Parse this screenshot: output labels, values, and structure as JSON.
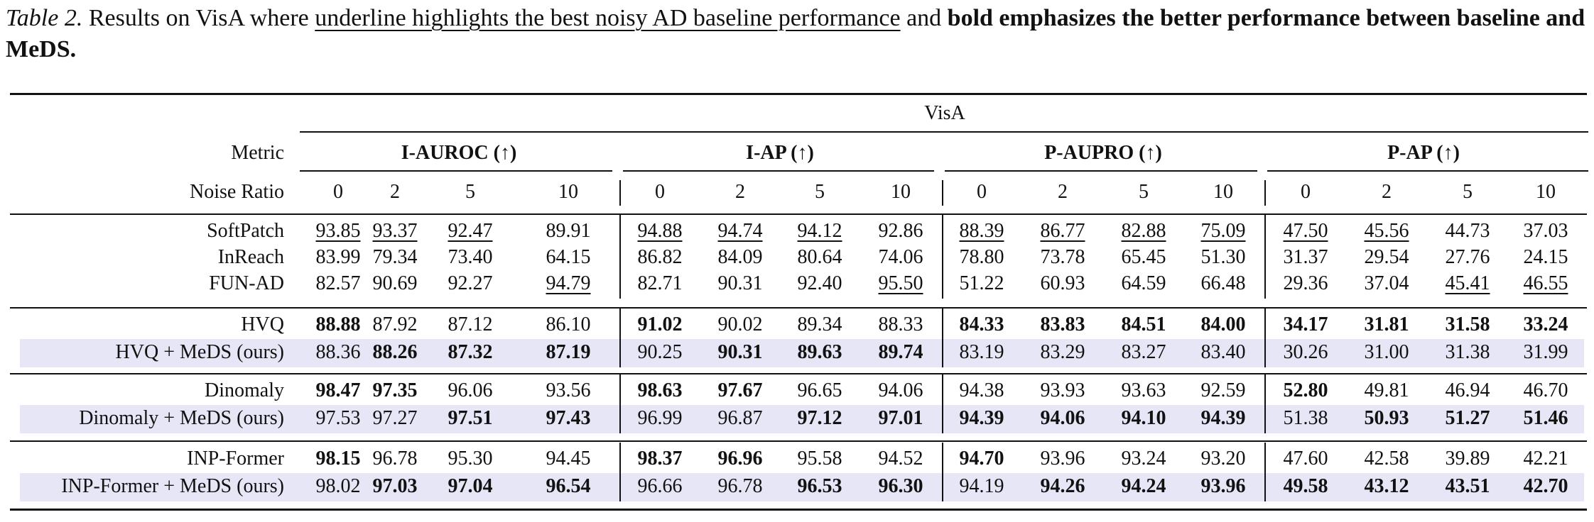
{
  "caption": {
    "label": "Table 2.",
    "text_before": " Results on VisA where ",
    "underline_text": "underline highlights the best noisy AD baseline performance",
    "text_mid": " and ",
    "bold_text": "bold emphasizes the better performance between baseline and MeDS."
  },
  "header": {
    "dataset": "VisA",
    "metric_label": "Metric",
    "noise_label": "Noise Ratio",
    "metrics": [
      "I-AUROC (↑)",
      "I-AP (↑)",
      "P-AUPRO (↑)",
      "P-AP (↑)"
    ],
    "noise_ratios": [
      "0",
      "2",
      "5",
      "10"
    ]
  },
  "groups": [
    {
      "rows": [
        {
          "name": "SoftPatch",
          "highlight": false,
          "values": [
            "93.85",
            "93.37",
            "92.47",
            "89.91",
            "94.88",
            "94.74",
            "94.12",
            "92.86",
            "88.39",
            "86.77",
            "82.88",
            "75.09",
            "47.50",
            "45.56",
            "44.73",
            "37.03"
          ],
          "bold": [],
          "underline": [
            0,
            1,
            2,
            4,
            5,
            6,
            8,
            9,
            10,
            11,
            12,
            13
          ]
        },
        {
          "name": "InReach",
          "highlight": false,
          "values": [
            "83.99",
            "79.34",
            "73.40",
            "64.15",
            "86.82",
            "84.09",
            "80.64",
            "74.06",
            "78.80",
            "73.78",
            "65.45",
            "51.30",
            "31.37",
            "29.54",
            "27.76",
            "24.15"
          ],
          "bold": [],
          "underline": []
        },
        {
          "name": "FUN-AD",
          "highlight": false,
          "values": [
            "82.57",
            "90.69",
            "92.27",
            "94.79",
            "82.71",
            "90.31",
            "92.40",
            "95.50",
            "51.22",
            "60.93",
            "64.59",
            "66.48",
            "29.36",
            "37.04",
            "45.41",
            "46.55"
          ],
          "bold": [],
          "underline": [
            3,
            7,
            14,
            15
          ]
        }
      ]
    },
    {
      "rows": [
        {
          "name": "HVQ",
          "highlight": false,
          "values": [
            "88.88",
            "87.92",
            "87.12",
            "86.10",
            "91.02",
            "90.02",
            "89.34",
            "88.33",
            "84.33",
            "83.83",
            "84.51",
            "84.00",
            "34.17",
            "31.81",
            "31.58",
            "33.24"
          ],
          "bold": [
            0,
            4,
            8,
            9,
            10,
            11,
            12,
            13,
            14,
            15
          ],
          "underline": []
        },
        {
          "name": "HVQ + MeDS (ours)",
          "highlight": true,
          "values": [
            "88.36",
            "88.26",
            "87.32",
            "87.19",
            "90.25",
            "90.31",
            "89.63",
            "89.74",
            "83.19",
            "83.29",
            "83.27",
            "83.40",
            "30.26",
            "31.00",
            "31.38",
            "31.99"
          ],
          "bold": [
            1,
            2,
            3,
            5,
            6,
            7
          ],
          "underline": []
        }
      ]
    },
    {
      "rows": [
        {
          "name": "Dinomaly",
          "highlight": false,
          "values": [
            "98.47",
            "97.35",
            "96.06",
            "93.56",
            "98.63",
            "97.67",
            "96.65",
            "94.06",
            "94.38",
            "93.93",
            "93.63",
            "92.59",
            "52.80",
            "49.81",
            "46.94",
            "46.70"
          ],
          "bold": [
            0,
            1,
            4,
            5,
            12
          ],
          "underline": []
        },
        {
          "name": "Dinomaly + MeDS (ours)",
          "highlight": true,
          "values": [
            "97.53",
            "97.27",
            "97.51",
            "97.43",
            "96.99",
            "96.87",
            "97.12",
            "97.01",
            "94.39",
            "94.06",
            "94.10",
            "94.39",
            "51.38",
            "50.93",
            "51.27",
            "51.46"
          ],
          "bold": [
            2,
            3,
            6,
            7,
            8,
            9,
            10,
            11,
            13,
            14,
            15
          ],
          "underline": []
        }
      ]
    },
    {
      "rows": [
        {
          "name": "INP-Former",
          "highlight": false,
          "values": [
            "98.15",
            "96.78",
            "95.30",
            "94.45",
            "98.37",
            "96.96",
            "95.58",
            "94.52",
            "94.70",
            "93.96",
            "93.24",
            "93.20",
            "47.60",
            "42.58",
            "39.89",
            "42.21"
          ],
          "bold": [
            0,
            4,
            5,
            8
          ],
          "underline": []
        },
        {
          "name": "INP-Former + MeDS (ours)",
          "highlight": true,
          "values": [
            "98.02",
            "97.03",
            "97.04",
            "96.54",
            "96.66",
            "96.78",
            "96.53",
            "96.30",
            "94.19",
            "94.26",
            "94.24",
            "93.96",
            "49.58",
            "43.12",
            "43.51",
            "42.70"
          ],
          "bold": [
            1,
            2,
            3,
            6,
            7,
            9,
            10,
            11,
            12,
            13,
            14,
            15
          ],
          "underline": []
        }
      ]
    }
  ]
}
